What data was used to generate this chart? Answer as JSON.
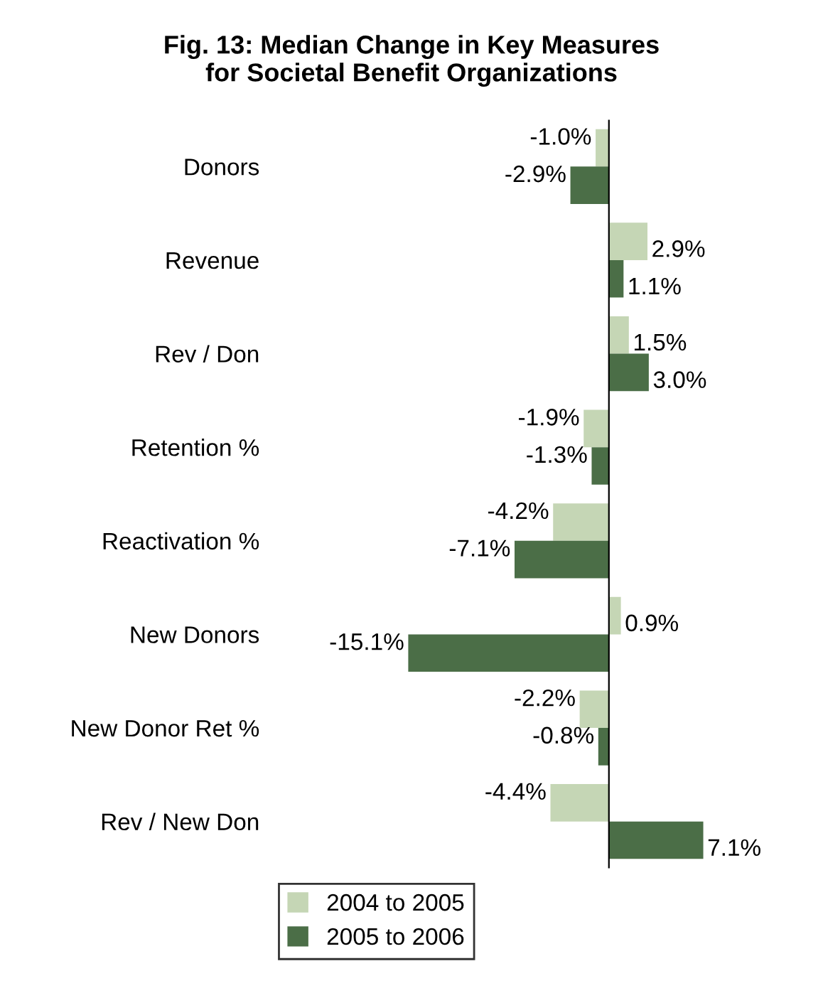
{
  "chart_data": {
    "type": "bar",
    "orientation": "horizontal",
    "title": "Fig. 13: Median Change in Key Measures\nfor Societal Benefit Organizations",
    "categories": [
      "Donors",
      "Revenue",
      "Rev / Don",
      "Retention %",
      "Reactivation %",
      "New Donors",
      "New Donor Ret %",
      "Rev / New Don"
    ],
    "series": [
      {
        "name": "2004 to 2005",
        "color": "#c5d6b5",
        "values": [
          -1.0,
          2.9,
          1.5,
          -1.9,
          -4.2,
          0.9,
          -2.2,
          -4.4
        ],
        "value_labels": [
          "-1.0%",
          "2.9%",
          "1.5%",
          "-1.9%",
          "-4.2%",
          "0.9%",
          "-2.2%",
          "-4.4%"
        ]
      },
      {
        "name": "2005 to 2006",
        "color": "#4b6e47",
        "values": [
          -2.9,
          1.1,
          3.0,
          -1.3,
          -7.1,
          -15.1,
          -0.8,
          7.1
        ],
        "value_labels": [
          "-2.9%",
          "1.1%",
          "3.0%",
          "-1.3%",
          "-7.1%",
          "-15.1%",
          "-0.8%",
          "7.1%"
        ]
      }
    ],
    "legend": "bottom",
    "grid": false,
    "tick_labels": "y"
  }
}
